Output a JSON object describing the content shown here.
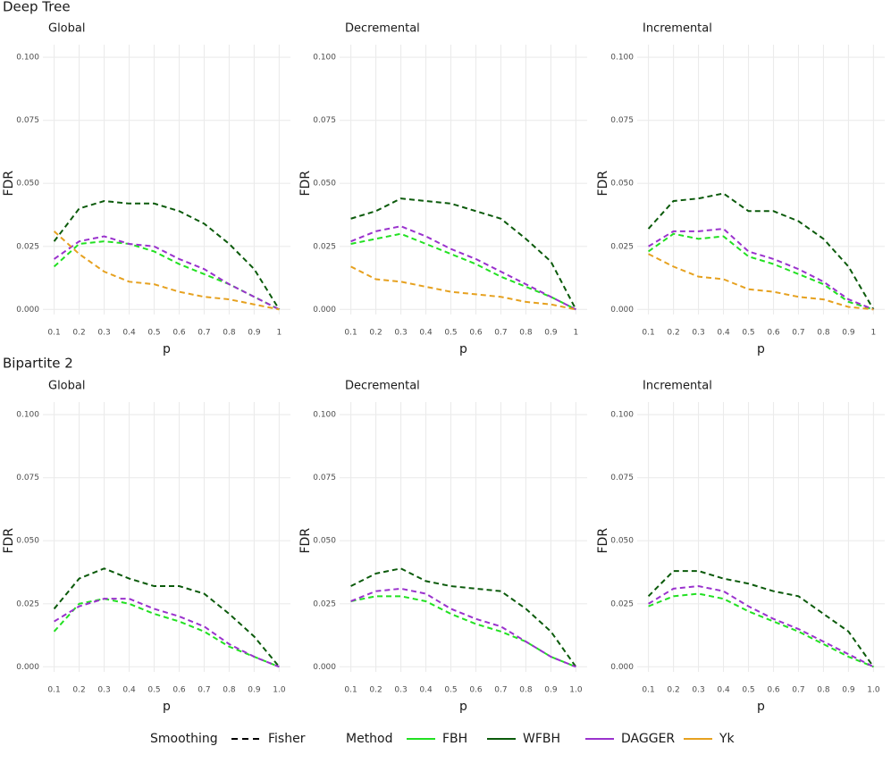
{
  "groups": [
    "Deep Tree",
    "Bipartite 2"
  ],
  "legend": {
    "smoothing_title": "Smoothing",
    "smoothing": "Fisher",
    "method_title": "Method"
  },
  "chart_data": [
    {
      "type": "line",
      "title": "Global",
      "xlabel": "p",
      "ylabel": "FDR",
      "grid": true,
      "linestyle": "dashed",
      "x": [
        0.1,
        0.2,
        0.3,
        0.4,
        0.5,
        0.6,
        0.7,
        0.8,
        0.9,
        1
      ],
      "xlim": [
        0.055,
        1.045
      ],
      "ylim": [
        -0.002,
        0.105
      ],
      "xticks": [
        0.1,
        0.2,
        0.3,
        0.4,
        0.5,
        0.6,
        0.7,
        0.8,
        0.9,
        1
      ],
      "yticks": [
        {
          "value": 0,
          "label": "0.000"
        },
        {
          "value": 0.025,
          "label": "0.025"
        },
        {
          "value": 0.05,
          "label": "0.050"
        },
        {
          "value": 0.075,
          "label": "0.075"
        },
        {
          "value": 0.1,
          "label": "0.100"
        }
      ],
      "series": [
        {
          "name": "FBH",
          "color": "#22e022",
          "values": [
            0.017,
            0.026,
            0.027,
            0.026,
            0.023,
            0.018,
            0.014,
            0.01,
            0.005,
            0.0
          ]
        },
        {
          "name": "WFBH",
          "color": "#0b5a0b",
          "values": [
            0.027,
            0.04,
            0.043,
            0.042,
            0.042,
            0.039,
            0.034,
            0.026,
            0.016,
            0.0
          ]
        },
        {
          "name": "DAGGER",
          "color": "#9a32cd",
          "values": [
            0.02,
            0.027,
            0.029,
            0.026,
            0.025,
            0.02,
            0.016,
            0.01,
            0.005,
            0.0
          ]
        },
        {
          "name": "Yk",
          "color": "#e6a11f",
          "values": [
            0.031,
            0.022,
            0.015,
            0.011,
            0.01,
            0.007,
            0.005,
            0.004,
            0.002,
            0.0
          ]
        }
      ]
    },
    {
      "type": "line",
      "title": "Decremental",
      "xlabel": "p",
      "ylabel": "FDR",
      "grid": true,
      "linestyle": "dashed",
      "x": [
        0.1,
        0.2,
        0.3,
        0.4,
        0.5,
        0.6,
        0.7,
        0.8,
        0.9,
        1
      ],
      "xlim": [
        0.055,
        1.045
      ],
      "ylim": [
        -0.002,
        0.105
      ],
      "xticks": [
        0.1,
        0.2,
        0.3,
        0.4,
        0.5,
        0.6,
        0.7,
        0.8,
        0.9,
        1
      ],
      "yticks": [
        {
          "value": 0,
          "label": "0.000"
        },
        {
          "value": 0.025,
          "label": "0.025"
        },
        {
          "value": 0.05,
          "label": "0.050"
        },
        {
          "value": 0.075,
          "label": "0.075"
        },
        {
          "value": 0.1,
          "label": "0.100"
        }
      ],
      "series": [
        {
          "name": "FBH",
          "color": "#22e022",
          "values": [
            0.026,
            0.028,
            0.03,
            0.026,
            0.022,
            0.018,
            0.013,
            0.009,
            0.005,
            0.0
          ]
        },
        {
          "name": "WFBH",
          "color": "#0b5a0b",
          "values": [
            0.036,
            0.039,
            0.044,
            0.043,
            0.042,
            0.039,
            0.036,
            0.028,
            0.019,
            0.0
          ]
        },
        {
          "name": "DAGGER",
          "color": "#9a32cd",
          "values": [
            0.027,
            0.031,
            0.033,
            0.029,
            0.024,
            0.02,
            0.015,
            0.01,
            0.005,
            0.0
          ]
        },
        {
          "name": "Yk",
          "color": "#e6a11f",
          "values": [
            0.017,
            0.012,
            0.011,
            0.009,
            0.007,
            0.006,
            0.005,
            0.003,
            0.002,
            0.0
          ]
        }
      ]
    },
    {
      "type": "line",
      "title": "Incremental",
      "xlabel": "p",
      "ylabel": "FDR",
      "grid": true,
      "linestyle": "dashed",
      "x": [
        0.1,
        0.2,
        0.3,
        0.4,
        0.5,
        0.6,
        0.7,
        0.8,
        0.9,
        1
      ],
      "xlim": [
        0.055,
        1.045
      ],
      "ylim": [
        -0.002,
        0.105
      ],
      "xticks": [
        0.1,
        0.2,
        0.3,
        0.4,
        0.5,
        0.6,
        0.7,
        0.8,
        0.9,
        1
      ],
      "yticks": [
        {
          "value": 0,
          "label": "0.000"
        },
        {
          "value": 0.025,
          "label": "0.025"
        },
        {
          "value": 0.05,
          "label": "0.050"
        },
        {
          "value": 0.075,
          "label": "0.075"
        },
        {
          "value": 0.1,
          "label": "0.100"
        }
      ],
      "series": [
        {
          "name": "FBH",
          "color": "#22e022",
          "values": [
            0.023,
            0.03,
            0.028,
            0.029,
            0.021,
            0.018,
            0.014,
            0.01,
            0.003,
            0.0
          ]
        },
        {
          "name": "WFBH",
          "color": "#0b5a0b",
          "values": [
            0.032,
            0.043,
            0.044,
            0.046,
            0.039,
            0.039,
            0.035,
            0.028,
            0.017,
            0.0
          ]
        },
        {
          "name": "DAGGER",
          "color": "#9a32cd",
          "values": [
            0.025,
            0.031,
            0.031,
            0.032,
            0.023,
            0.02,
            0.016,
            0.011,
            0.004,
            0.0
          ]
        },
        {
          "name": "Yk",
          "color": "#e6a11f",
          "values": [
            0.022,
            0.017,
            0.013,
            0.012,
            0.008,
            0.007,
            0.005,
            0.004,
            0.001,
            0.0
          ]
        }
      ]
    },
    {
      "type": "line",
      "title": "Global",
      "xlabel": "p",
      "ylabel": "FDR",
      "grid": true,
      "linestyle": "dashed",
      "x": [
        0.1,
        0.2,
        0.3,
        0.4,
        0.5,
        0.6,
        0.7,
        0.8,
        0.9,
        1
      ],
      "xlim": [
        0.055,
        1.045
      ],
      "ylim": [
        -0.002,
        0.105
      ],
      "xticks": [
        0.1,
        0.2,
        0.3,
        0.4,
        0.5,
        0.6,
        0.7,
        0.8,
        0.9,
        {
          "value": 1,
          "label": "1.0"
        }
      ],
      "yticks": [
        {
          "value": 0,
          "label": "0.000"
        },
        {
          "value": 0.025,
          "label": "0.025"
        },
        {
          "value": 0.05,
          "label": "0.050"
        },
        {
          "value": 0.075,
          "label": "0.075"
        },
        {
          "value": 0.1,
          "label": "0.100"
        }
      ],
      "series": [
        {
          "name": "FBH",
          "color": "#22e022",
          "values": [
            0.014,
            0.025,
            0.027,
            0.025,
            0.021,
            0.018,
            0.014,
            0.008,
            0.004,
            0.0
          ]
        },
        {
          "name": "WFBH",
          "color": "#0b5a0b",
          "values": [
            0.023,
            0.035,
            0.039,
            0.035,
            0.032,
            0.032,
            0.029,
            0.021,
            0.012,
            0.0
          ]
        },
        {
          "name": "DAGGER",
          "color": "#9a32cd",
          "values": [
            0.018,
            0.024,
            0.027,
            0.027,
            0.023,
            0.02,
            0.016,
            0.009,
            0.004,
            0.0
          ]
        }
      ]
    },
    {
      "type": "line",
      "title": "Decremental",
      "xlabel": "p",
      "ylabel": "FDR",
      "grid": true,
      "linestyle": "dashed",
      "x": [
        0.1,
        0.2,
        0.3,
        0.4,
        0.5,
        0.6,
        0.7,
        0.8,
        0.9,
        1
      ],
      "xlim": [
        0.055,
        1.045
      ],
      "ylim": [
        -0.002,
        0.105
      ],
      "xticks": [
        0.1,
        0.2,
        0.3,
        0.4,
        0.5,
        0.6,
        0.7,
        0.8,
        0.9,
        {
          "value": 1,
          "label": "1.0"
        }
      ],
      "yticks": [
        {
          "value": 0,
          "label": "0.000"
        },
        {
          "value": 0.025,
          "label": "0.025"
        },
        {
          "value": 0.05,
          "label": "0.050"
        },
        {
          "value": 0.075,
          "label": "0.075"
        },
        {
          "value": 0.1,
          "label": "0.100"
        }
      ],
      "series": [
        {
          "name": "FBH",
          "color": "#22e022",
          "values": [
            0.026,
            0.028,
            0.028,
            0.026,
            0.021,
            0.017,
            0.014,
            0.01,
            0.004,
            0.0
          ]
        },
        {
          "name": "WFBH",
          "color": "#0b5a0b",
          "values": [
            0.032,
            0.037,
            0.039,
            0.034,
            0.032,
            0.031,
            0.03,
            0.023,
            0.014,
            0.0
          ]
        },
        {
          "name": "DAGGER",
          "color": "#9a32cd",
          "values": [
            0.026,
            0.03,
            0.031,
            0.029,
            0.023,
            0.019,
            0.016,
            0.01,
            0.004,
            0.0
          ]
        }
      ]
    },
    {
      "type": "line",
      "title": "Incremental",
      "xlabel": "p",
      "ylabel": "FDR",
      "grid": true,
      "linestyle": "dashed",
      "x": [
        0.1,
        0.2,
        0.3,
        0.4,
        0.5,
        0.6,
        0.7,
        0.8,
        0.9,
        1
      ],
      "xlim": [
        0.055,
        1.045
      ],
      "ylim": [
        -0.002,
        0.105
      ],
      "xticks": [
        0.1,
        0.2,
        0.3,
        0.4,
        0.5,
        0.6,
        0.7,
        0.8,
        0.9,
        {
          "value": 1,
          "label": "1.0"
        }
      ],
      "yticks": [
        {
          "value": 0,
          "label": "0.000"
        },
        {
          "value": 0.025,
          "label": "0.025"
        },
        {
          "value": 0.05,
          "label": "0.050"
        },
        {
          "value": 0.075,
          "label": "0.075"
        },
        {
          "value": 0.1,
          "label": "0.100"
        }
      ],
      "series": [
        {
          "name": "FBH",
          "color": "#22e022",
          "values": [
            0.024,
            0.028,
            0.029,
            0.027,
            0.022,
            0.018,
            0.014,
            0.009,
            0.004,
            0.0
          ]
        },
        {
          "name": "WFBH",
          "color": "#0b5a0b",
          "values": [
            0.028,
            0.038,
            0.038,
            0.035,
            0.033,
            0.03,
            0.028,
            0.021,
            0.014,
            0.0
          ]
        },
        {
          "name": "DAGGER",
          "color": "#9a32cd",
          "values": [
            0.025,
            0.031,
            0.032,
            0.03,
            0.024,
            0.019,
            0.015,
            0.01,
            0.005,
            0.0
          ]
        }
      ]
    }
  ]
}
